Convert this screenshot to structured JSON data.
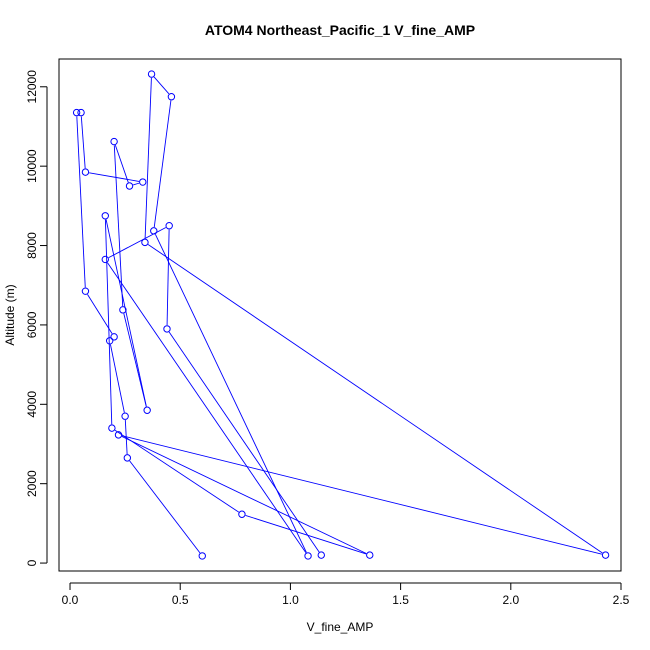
{
  "chart_data": {
    "type": "line",
    "title": "ATOM4 Northeast_Pacific_1 V_fine_AMP",
    "xlabel": "V_fine_AMP",
    "ylabel": "Altitude (m)",
    "xlim": [
      -0.05,
      2.5
    ],
    "ylim": [
      -200,
      12700
    ],
    "xticks": [
      0.0,
      0.5,
      1.0,
      1.5,
      2.0,
      2.5
    ],
    "xtick_labels": [
      "0.0",
      "0.5",
      "1.0",
      "1.5",
      "2.0",
      "2.5"
    ],
    "yticks": [
      0,
      2000,
      4000,
      6000,
      8000,
      10000,
      12000
    ],
    "ytick_labels": [
      "0",
      "2000",
      "4000",
      "6000",
      "8000",
      "10000",
      "12000"
    ],
    "grid": false,
    "series": [
      {
        "color": "#0000ff",
        "marker": "open-circle",
        "x": [
          0.6,
          0.26,
          0.25,
          0.18,
          0.2,
          0.07,
          0.03,
          0.05,
          0.07,
          0.33,
          0.27,
          0.2,
          0.24,
          0.35,
          0.16,
          0.19,
          0.78,
          1.36,
          0.22,
          2.43,
          0.34,
          0.37,
          0.46,
          0.38,
          1.08,
          0.16,
          0.45,
          0.44,
          1.14
        ],
        "y": [
          180,
          2650,
          3700,
          5600,
          5700,
          6850,
          11350,
          11350,
          9850,
          9600,
          9500,
          10620,
          6380,
          3850,
          8750,
          3400,
          1230,
          200,
          3230,
          200,
          8080,
          12320,
          11750,
          8370,
          180,
          7650,
          8500,
          5900,
          200
        ]
      }
    ]
  }
}
